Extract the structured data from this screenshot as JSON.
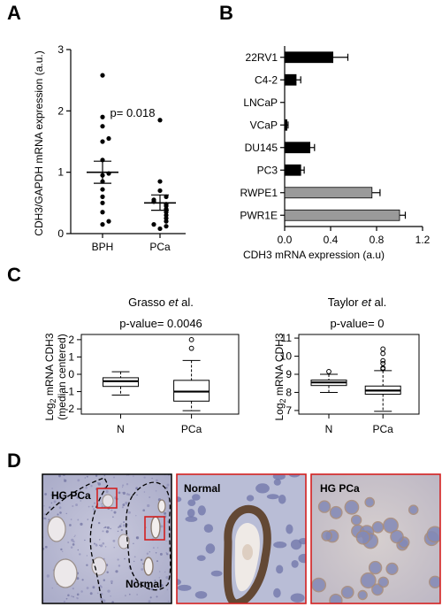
{
  "panels": {
    "a": "A",
    "b": "B",
    "c": "C",
    "d": "D"
  },
  "chart_data": [
    {
      "type": "scatter",
      "panel": "A",
      "ylabel": "CDH3/GAPDH mRNA expression (a.u.)",
      "categories": [
        "BPH",
        "PCa"
      ],
      "ylim": [
        0,
        3
      ],
      "yticks": [
        0,
        1,
        2,
        3
      ],
      "annotation": "p= 0.018",
      "series": [
        {
          "values": [
            2.58,
            1.9,
            1.75,
            1.55,
            1.5,
            1.2,
            0.98,
            0.95,
            0.85,
            0.72,
            0.6,
            0.5,
            0.35,
            0.2,
            0.15
          ],
          "mean": 1.0,
          "sem": [
            0.82,
            1.18
          ]
        },
        {
          "values": [
            1.85,
            0.85,
            0.7,
            0.6,
            0.55,
            0.52,
            0.48,
            0.45,
            0.4,
            0.35,
            0.3,
            0.25,
            0.2,
            0.15,
            0.12,
            0.08
          ],
          "mean": 0.5,
          "sem": [
            0.38,
            0.63
          ]
        }
      ]
    },
    {
      "type": "bar",
      "orientation": "horizontal",
      "panel": "B",
      "xlabel": "CDH3 mRNA expression (a.u)",
      "categories": [
        "22RV1",
        "C4-2",
        "LNCaP",
        "VCaP",
        "DU145",
        "PC3",
        "RWPE1",
        "PWR1E"
      ],
      "values": [
        0.42,
        0.1,
        0.0,
        0.02,
        0.22,
        0.14,
        0.76,
        1.0
      ],
      "errors": [
        0.13,
        0.04,
        0.0,
        0.01,
        0.04,
        0.03,
        0.07,
        0.05
      ],
      "colors": [
        "#000000",
        "#000000",
        "#000000",
        "#000000",
        "#000000",
        "#000000",
        "#9a9a9a",
        "#9a9a9a"
      ],
      "xlim": [
        0,
        1.2
      ],
      "xticks": [
        "0.0",
        "0.4",
        "0.8",
        "1.2"
      ]
    },
    {
      "type": "box",
      "panel": "C",
      "title": "Grasso et al.",
      "title_main": "Grasso ",
      "title_em": "et",
      "title_end": " al.",
      "annotation": "p-value= 0.0046",
      "ylabel": "Log2 mRNA CDH3 (median centered)",
      "ylabel_line1_pre": "Log",
      "ylabel_line1_sub": "2",
      "ylabel_line1_post": " mRNA CDH3",
      "ylabel_line2": "(median centered)",
      "categories": [
        "N",
        "PCa"
      ],
      "ylim": [
        -2.3,
        2.3
      ],
      "yticks": [
        2,
        1,
        0,
        -1,
        -2
      ],
      "boxes": [
        {
          "min": -1.2,
          "q1": -0.7,
          "median": -0.4,
          "q3": -0.2,
          "max": 0.15,
          "outliers": []
        },
        {
          "min": -2.1,
          "q1": -1.55,
          "median": -1.0,
          "q3": -0.35,
          "max": 0.8,
          "outliers": [
            1.5,
            2.0
          ]
        }
      ]
    },
    {
      "type": "box",
      "panel": "C",
      "title": "Taylor et al.",
      "title_main": "Taylor ",
      "title_em": "et",
      "title_end": " al.",
      "annotation": "p-value= 0",
      "ylabel": "Log2 mRNA CDH3",
      "ylabel_line1_pre": "Log",
      "ylabel_line1_sub": "2",
      "ylabel_line1_post": " mRNA CDH3",
      "categories": [
        "N",
        "PCa"
      ],
      "ylim": [
        6.8,
        11.2
      ],
      "yticks": [
        11,
        10,
        9,
        8,
        7
      ],
      "boxes": [
        {
          "min": 8.0,
          "q1": 8.38,
          "median": 8.55,
          "q3": 8.68,
          "max": 9.0,
          "outliers": [
            9.15
          ]
        },
        {
          "min": 6.95,
          "q1": 7.9,
          "median": 8.1,
          "q3": 8.35,
          "max": 9.2,
          "outliers": [
            9.3,
            9.35,
            9.6,
            9.75,
            10.15,
            10.4
          ]
        }
      ]
    }
  ],
  "micrographs": {
    "overview_label_tumor": "HG PCa",
    "overview_label_normal": "Normal",
    "inset_normal_label": "Normal",
    "inset_tumor_label": "HG PCa"
  }
}
